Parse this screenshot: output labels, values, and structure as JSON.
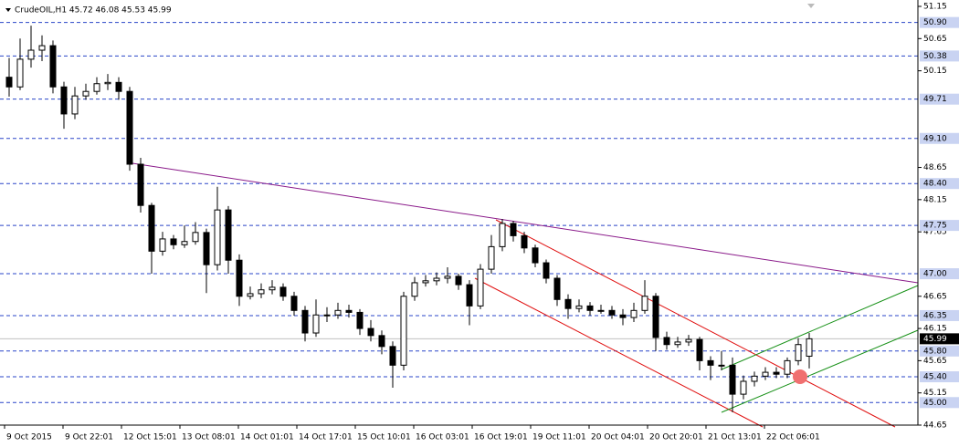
{
  "chart_data": {
    "type": "candlestick",
    "title": "CrudeOIL,H1 45.72 46.08 45.53 45.99",
    "ylim": [
      44.65,
      51.15
    ],
    "yticks": [
      51.15,
      50.65,
      50.15,
      48.65,
      48.15,
      47.65,
      46.65,
      46.15,
      45.65,
      45.15,
      44.65
    ],
    "levels": [
      {
        "value": 50.9,
        "label": "50.90"
      },
      50.38,
      49.71,
      {
        "value": 49.1,
        "label": "49.10"
      },
      {
        "value": 48.4,
        "label": "48.40"
      },
      47.75,
      {
        "value": 47,
        "label": "47.00"
      },
      46.35,
      {
        "value": 45.8,
        "label": "45.80"
      },
      {
        "value": 45.4,
        "label": "45.40"
      },
      {
        "value": 45,
        "label": "45.00"
      }
    ],
    "last_price": 45.99,
    "x_labels": [
      "9 Oct 2015",
      "9 Oct 22:01",
      "12 Oct 15:01",
      "13 Oct 08:01",
      "14 Oct 01:01",
      "14 Oct 17:01",
      "15 Oct 10:01",
      "16 Oct 03:01",
      "16 Oct 19:01",
      "19 Oct 11:01",
      "20 Oct 04:01",
      "20 Oct 20:01",
      "21 Oct 13:01",
      "22 Oct 06:01"
    ],
    "open": [
      50.05,
      49.9,
      50.33,
      50.47,
      50.54,
      49.9,
      49.48,
      49.76,
      49.83,
      49.95,
      49.97,
      49.83,
      48.7,
      48.06,
      47.35,
      47.54,
      47.45,
      47.5,
      47.64,
      47.14,
      47.99,
      47.21,
      46.65,
      46.69,
      46.75,
      46.79,
      46.65,
      46.43,
      46.08,
      46.36,
      46.36,
      46.43,
      46.4,
      46.15,
      46.04,
      45.87,
      45.58,
      46.65,
      46.86,
      46.89,
      46.93,
      46.96,
      46.83,
      46.5,
      47.07,
      47.42,
      47.78,
      47.59,
      47.4,
      47.17,
      46.93,
      46.6,
      46.46,
      46.5,
      46.43,
      46.43,
      46.36,
      46.32,
      46.43,
      46.65,
      46.01,
      45.9,
      45.94,
      45.98,
      45.65,
      45.58,
      45.58,
      45.13,
      45.33,
      45.41,
      45.47,
      45.44,
      45.65,
      45.72
    ],
    "high": [
      50.35,
      50.65,
      50.85,
      50.7,
      50.62,
      49.98,
      49.9,
      49.95,
      50.05,
      50.1,
      50.05,
      49.9,
      48.8,
      48.1,
      47.65,
      47.6,
      47.75,
      47.8,
      47.7,
      48.35,
      48.05,
      47.3,
      46.8,
      46.85,
      46.9,
      46.85,
      46.72,
      46.5,
      46.6,
      46.48,
      46.55,
      46.52,
      46.45,
      46.28,
      46.12,
      45.95,
      46.72,
      46.95,
      46.98,
      47.02,
      47.1,
      47.0,
      46.9,
      47.15,
      47.6,
      47.85,
      47.82,
      47.65,
      47.45,
      47.22,
      46.98,
      46.68,
      46.6,
      46.56,
      46.52,
      46.5,
      46.45,
      46.55,
      46.9,
      46.7,
      46.1,
      46.02,
      46.05,
      46.02,
      45.72,
      45.8,
      45.7,
      45.42,
      45.48,
      45.55,
      45.55,
      45.7,
      46.0,
      46.08
    ],
    "low": [
      49.75,
      49.85,
      50.2,
      50.3,
      49.8,
      49.25,
      49.4,
      49.7,
      49.78,
      49.85,
      49.7,
      48.6,
      47.95,
      47.0,
      47.28,
      47.38,
      47.4,
      47.45,
      46.7,
      47.05,
      47.0,
      46.5,
      46.6,
      46.62,
      46.68,
      46.58,
      46.35,
      45.95,
      46.02,
      46.25,
      46.3,
      46.32,
      46.05,
      45.95,
      45.75,
      45.23,
      45.5,
      46.58,
      46.8,
      46.82,
      46.85,
      46.75,
      46.2,
      46.45,
      47.0,
      47.35,
      47.5,
      47.32,
      47.1,
      46.85,
      46.5,
      46.3,
      46.4,
      46.35,
      46.38,
      46.3,
      46.2,
      46.25,
      46.38,
      45.8,
      45.82,
      45.85,
      45.88,
      45.5,
      45.35,
      45.5,
      44.85,
      45.05,
      45.25,
      45.35,
      45.38,
      45.38,
      45.58,
      45.53
    ],
    "close": [
      49.9,
      50.33,
      50.47,
      50.54,
      49.9,
      49.48,
      49.76,
      49.83,
      49.95,
      49.97,
      49.83,
      48.7,
      48.06,
      47.35,
      47.54,
      47.45,
      47.5,
      47.64,
      47.14,
      47.99,
      47.21,
      46.65,
      46.69,
      46.75,
      46.79,
      46.65,
      46.43,
      46.08,
      46.36,
      46.36,
      46.43,
      46.4,
      46.15,
      46.04,
      45.87,
      45.58,
      46.65,
      46.86,
      46.89,
      46.93,
      46.96,
      46.83,
      46.5,
      47.07,
      47.42,
      47.78,
      47.59,
      47.4,
      47.17,
      46.93,
      46.6,
      46.46,
      46.5,
      46.43,
      46.43,
      46.36,
      46.32,
      46.43,
      46.65,
      46.01,
      45.9,
      45.94,
      45.98,
      45.65,
      45.58,
      45.58,
      45.13,
      45.33,
      45.41,
      45.47,
      45.44,
      45.65,
      45.9,
      45.99
    ]
  }
}
